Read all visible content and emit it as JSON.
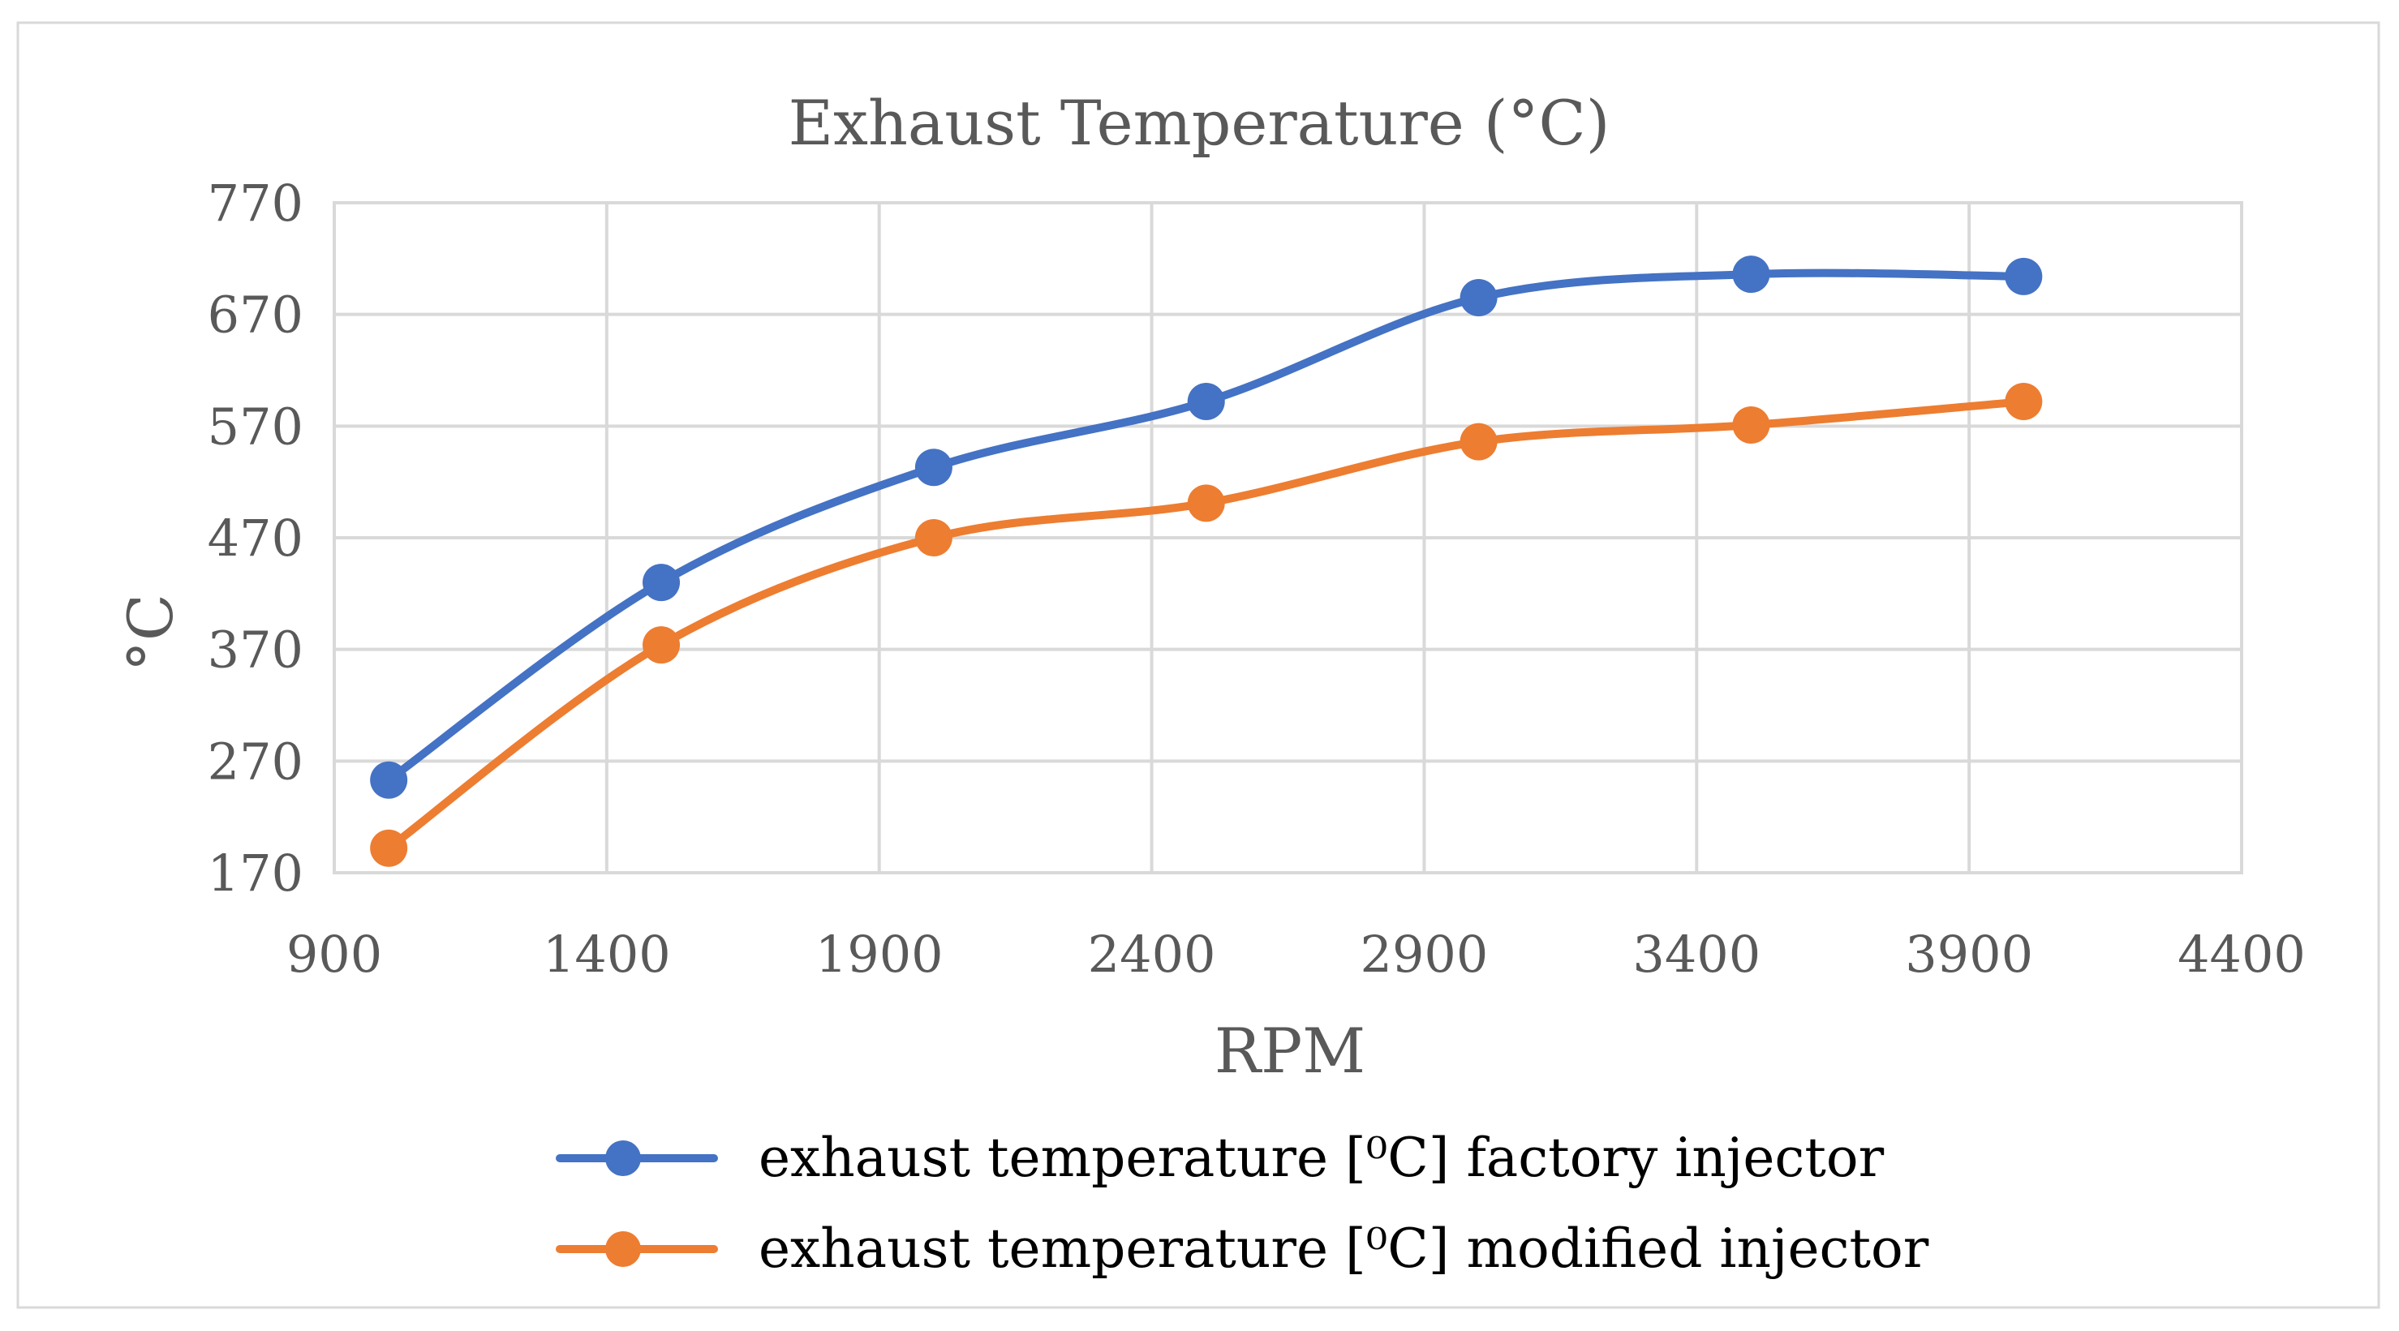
{
  "chart_data": {
    "type": "line",
    "title": "Exhaust Temperature (°C)",
    "xlabel": "RPM",
    "ylabel": "°C",
    "xlim": [
      900,
      4400
    ],
    "ylim": [
      170,
      770
    ],
    "xticks": [
      "900",
      "1400",
      "1900",
      "2400",
      "2900",
      "3400",
      "3900",
      "4400"
    ],
    "yticks": [
      "770",
      "670",
      "570",
      "470",
      "370",
      "270",
      "170"
    ],
    "grid": true,
    "smooth": true,
    "legend_position": "bottom",
    "series": [
      {
        "name": "exhaust temperature [⁰C] factory injector",
        "color": "#4472c4",
        "x": [
          1000,
          1500,
          2000,
          2500,
          3000,
          3500,
          4000
        ],
        "y": [
          253,
          430,
          533,
          592,
          685,
          706,
          704
        ]
      },
      {
        "name": "exhaust temperature [⁰C] modified injector",
        "color": "#ed7d31",
        "x": [
          1000,
          1500,
          2000,
          2500,
          3000,
          3500,
          4000
        ],
        "y": [
          192,
          374,
          470,
          501,
          556,
          571,
          592
        ]
      }
    ]
  }
}
